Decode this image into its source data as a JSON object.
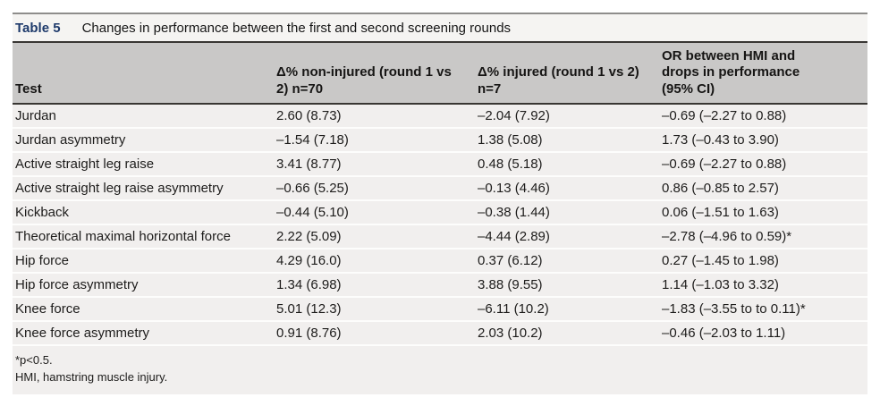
{
  "table": {
    "label": "Table 5",
    "caption": "Changes in performance between the first and second screening rounds",
    "columns": [
      "Test",
      "Δ% non-injured (round 1 vs 2) n=70",
      "Δ% injured (round 1 vs 2) n=7",
      "OR between HMI and drops in performance (95% CI)"
    ],
    "rows": [
      [
        "Jurdan",
        "2.60 (8.73)",
        "–2.04 (7.92)",
        "–0.69 (–2.27 to 0.88)"
      ],
      [
        "Jurdan asymmetry",
        "–1.54 (7.18)",
        "1.38 (5.08)",
        "1.73 (–0.43 to 3.90)"
      ],
      [
        "Active straight leg raise",
        "3.41 (8.77)",
        "0.48 (5.18)",
        "–0.69 (–2.27 to 0.88)"
      ],
      [
        "Active straight leg raise asymmetry",
        "–0.66 (5.25)",
        "–0.13 (4.46)",
        "0.86 (–0.85 to 2.57)"
      ],
      [
        "Kickback",
        "–0.44 (5.10)",
        "–0.38 (1.44)",
        "0.06 (–1.51 to 1.63)"
      ],
      [
        "Theoretical maximal horizontal force",
        "2.22 (5.09)",
        "–4.44 (2.89)",
        "–2.78 (–4.96 to 0.59)*"
      ],
      [
        "Hip force",
        "4.29 (16.0)",
        "0.37 (6.12)",
        "0.27 (–1.45 to 1.98)"
      ],
      [
        "Hip force asymmetry",
        "1.34 (6.98)",
        "3.88 (9.55)",
        "1.14 (–1.03 to 3.32)"
      ],
      [
        "Knee force",
        "5.01 (12.3)",
        "–6.11 (10.2)",
        "–1.83 (–3.55 to to 0.11)*"
      ],
      [
        "Knee force asymmetry",
        "0.91 (8.76)",
        "2.03 (10.2)",
        "–0.46 (–2.03 to 1.11)"
      ]
    ],
    "footnotes": [
      "*p<0.5.",
      "HMI, hamstring muscle injury."
    ]
  },
  "colors": {
    "label_accent": "#1e3a6b",
    "header_bg": "#c9c8c7",
    "row_bg": "#f1efee",
    "title_bg": "#f5f4f2",
    "rule_dark": "#383633",
    "rule_top": "#8e8d8b"
  }
}
